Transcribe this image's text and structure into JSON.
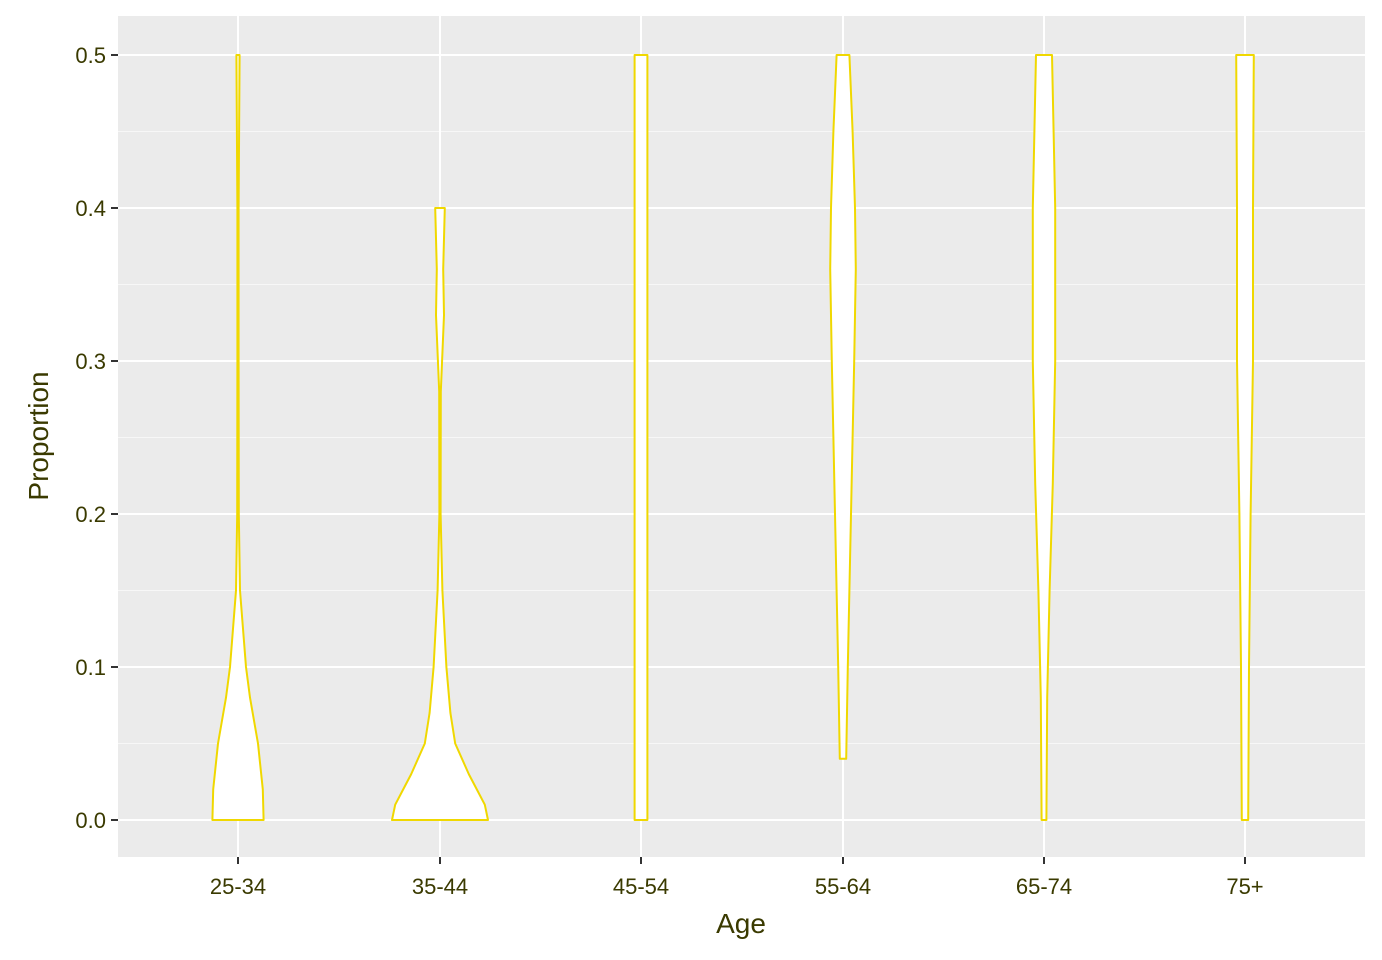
{
  "chart_data": {
    "type": "violin",
    "title": "",
    "xlabel": "Age",
    "ylabel": "Proportion",
    "categories": [
      "25-34",
      "35-44",
      "45-54",
      "55-64",
      "65-74",
      "75+"
    ],
    "y_ticks": [
      "0.0",
      "0.1",
      "0.2",
      "0.3",
      "0.4",
      "0.5"
    ],
    "ylim": [
      -0.024,
      0.526
    ],
    "grid": true,
    "legend": "none",
    "colors": {
      "outline": "#f0d800",
      "fill": "#ffffff",
      "panel": "#ebebeb",
      "grid": "#ffffff",
      "text": "#3a3a00"
    },
    "violins": [
      {
        "category": "25-34",
        "y_min": 0.0,
        "y_max": 0.5,
        "profile": [
          [
            0.0,
            0.32
          ],
          [
            0.02,
            0.31
          ],
          [
            0.05,
            0.25
          ],
          [
            0.08,
            0.15
          ],
          [
            0.1,
            0.1
          ],
          [
            0.12,
            0.07
          ],
          [
            0.15,
            0.025
          ],
          [
            0.2,
            0.01
          ],
          [
            0.3,
            0.008
          ],
          [
            0.4,
            0.008
          ],
          [
            0.5,
            0.02
          ]
        ]
      },
      {
        "category": "35-44",
        "y_min": 0.0,
        "y_max": 0.4,
        "profile": [
          [
            0.0,
            0.6
          ],
          [
            0.01,
            0.56
          ],
          [
            0.02,
            0.46
          ],
          [
            0.03,
            0.36
          ],
          [
            0.05,
            0.19
          ],
          [
            0.07,
            0.13
          ],
          [
            0.1,
            0.08
          ],
          [
            0.15,
            0.03
          ],
          [
            0.2,
            0.008
          ],
          [
            0.28,
            0.01
          ],
          [
            0.33,
            0.05
          ],
          [
            0.36,
            0.04
          ],
          [
            0.4,
            0.06
          ]
        ]
      },
      {
        "category": "45-54",
        "y_min": 0.0,
        "y_max": 0.5,
        "profile": [
          [
            0.0,
            0.08
          ],
          [
            0.1,
            0.08
          ],
          [
            0.2,
            0.08
          ],
          [
            0.3,
            0.08
          ],
          [
            0.4,
            0.08
          ],
          [
            0.5,
            0.08
          ]
        ]
      },
      {
        "category": "55-64",
        "y_min": 0.04,
        "y_max": 0.5,
        "profile": [
          [
            0.04,
            0.04
          ],
          [
            0.1,
            0.06
          ],
          [
            0.2,
            0.1
          ],
          [
            0.3,
            0.14
          ],
          [
            0.36,
            0.16
          ],
          [
            0.4,
            0.15
          ],
          [
            0.45,
            0.12
          ],
          [
            0.5,
            0.08
          ]
        ]
      },
      {
        "category": "65-74",
        "y_min": 0.0,
        "y_max": 0.5,
        "profile": [
          [
            0.0,
            0.03
          ],
          [
            0.08,
            0.04
          ],
          [
            0.15,
            0.07
          ],
          [
            0.22,
            0.11
          ],
          [
            0.3,
            0.14
          ],
          [
            0.4,
            0.14
          ],
          [
            0.5,
            0.1
          ]
        ]
      },
      {
        "category": "75+",
        "y_min": 0.0,
        "y_max": 0.5,
        "profile": [
          [
            0.0,
            0.04
          ],
          [
            0.1,
            0.05
          ],
          [
            0.2,
            0.07
          ],
          [
            0.3,
            0.1
          ],
          [
            0.4,
            0.1
          ],
          [
            0.5,
            0.11
          ]
        ]
      }
    ]
  }
}
